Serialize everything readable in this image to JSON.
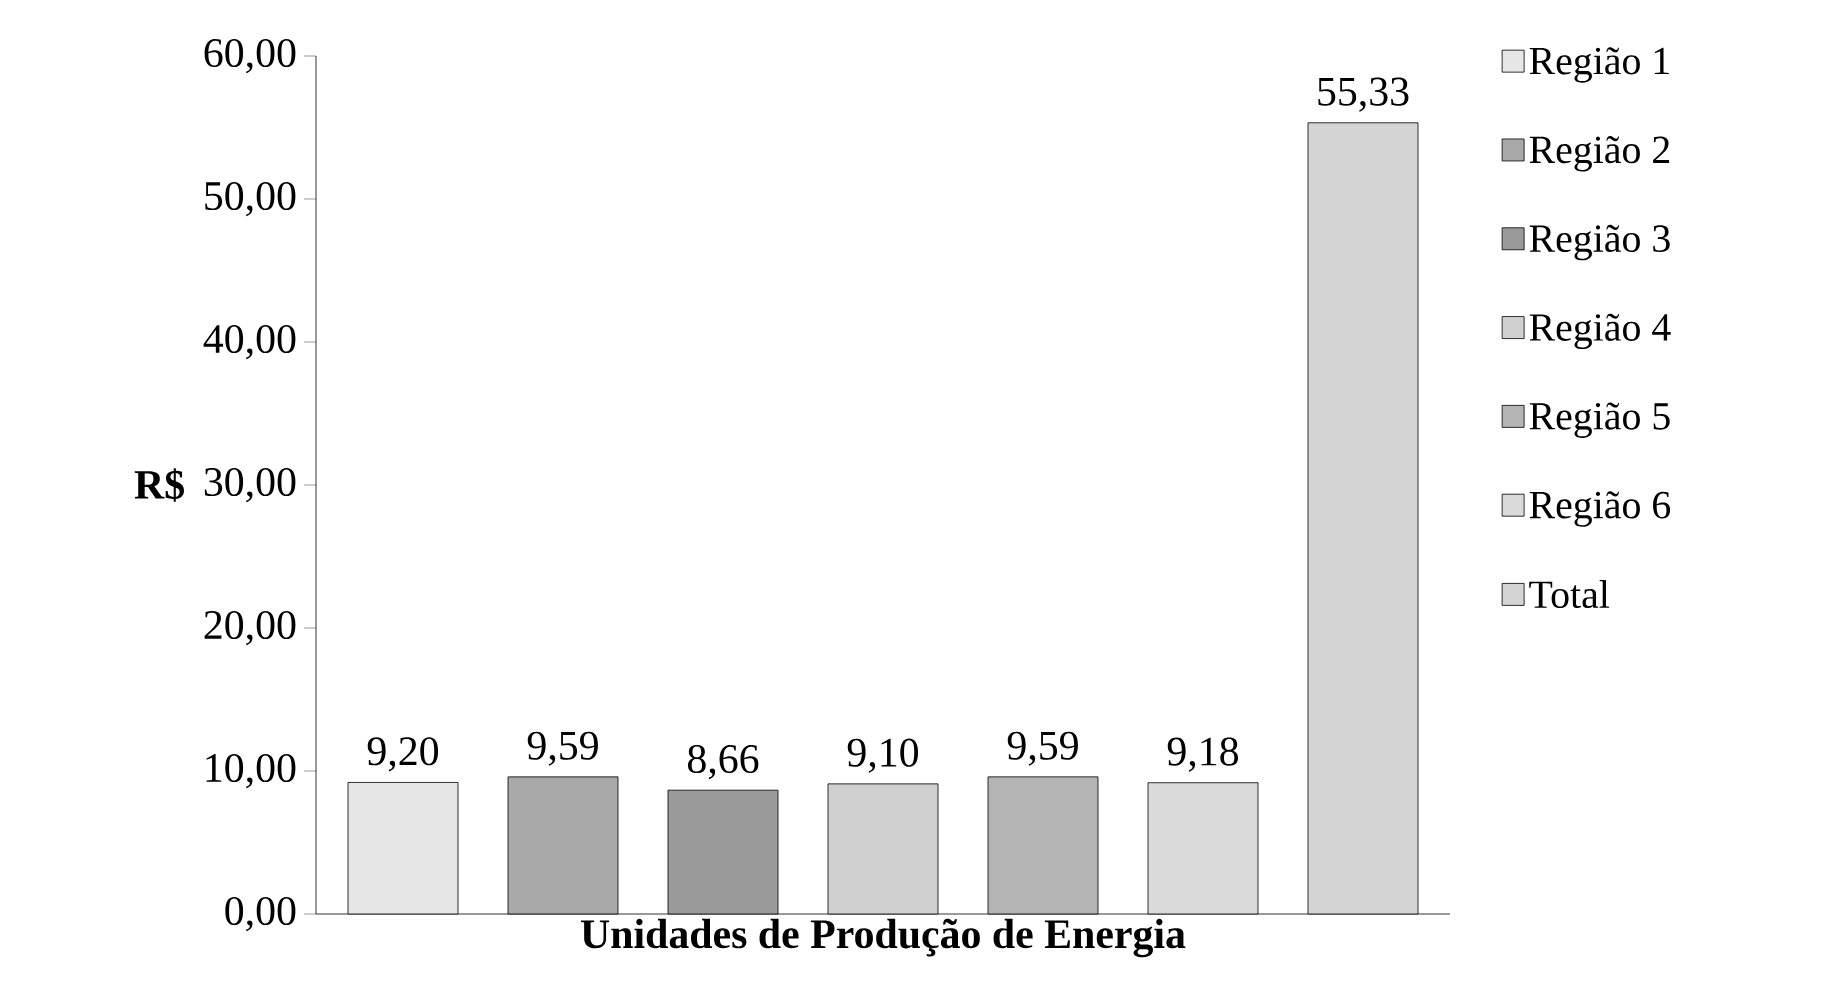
{
  "chart_data": {
    "type": "bar",
    "xlabel": "Unidades de Produção de Energia",
    "ylabel": "R$",
    "categories": [
      null
    ],
    "series": [
      {
        "name": "Região 1",
        "color": "#e6e6e6",
        "values": [
          9.2
        ],
        "value_labels": [
          "9,20"
        ]
      },
      {
        "name": "Região 2",
        "color": "#a8a8a8",
        "values": [
          9.59
        ],
        "value_labels": [
          "9,59"
        ]
      },
      {
        "name": "Região 3",
        "color": "#9a9a9a",
        "values": [
          8.66
        ],
        "value_labels": [
          "8,66"
        ]
      },
      {
        "name": "Região 4",
        "color": "#d0d0d0",
        "values": [
          9.1
        ],
        "value_labels": [
          "9,10"
        ]
      },
      {
        "name": "Região 5",
        "color": "#b4b4b4",
        "values": [
          9.59
        ],
        "value_labels": [
          "9,59"
        ]
      },
      {
        "name": "Região 6",
        "color": "#dadada",
        "values": [
          9.18
        ],
        "value_labels": [
          "9,18"
        ]
      },
      {
        "name": "Total",
        "color": "#d4d4d4",
        "values": [
          55.33
        ],
        "value_labels": [
          "55,33"
        ]
      }
    ],
    "ylim": [
      0,
      60
    ],
    "yticks": [
      {
        "value": 0,
        "label": "0,00"
      },
      {
        "value": 10,
        "label": "10,00"
      },
      {
        "value": 20,
        "label": "20,00"
      },
      {
        "value": 30,
        "label": "30,00"
      },
      {
        "value": 40,
        "label": "40,00"
      },
      {
        "value": 50,
        "label": "50,00"
      },
      {
        "value": 60,
        "label": "60,00"
      }
    ],
    "grid": false,
    "legend": "right"
  }
}
